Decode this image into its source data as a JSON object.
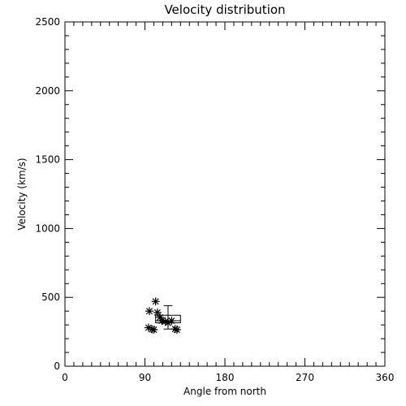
{
  "chart_data": {
    "type": "scatter",
    "title": "Velocity distribution",
    "xlabel": "Angle from north",
    "ylabel": "Velocity (km/s)",
    "xlim": [
      0,
      360
    ],
    "ylim": [
      0,
      2500
    ],
    "xticks": [
      0,
      90,
      180,
      270,
      360
    ],
    "yticks": [
      0,
      500,
      1000,
      1500,
      2000,
      2500
    ],
    "xtick_labels": [
      "0",
      "90",
      "180",
      "270",
      "360"
    ],
    "ytick_labels": [
      "0",
      "500",
      "1000",
      "1500",
      "2000",
      "2500"
    ],
    "x_minor_step": 10,
    "y_minor_step": 100,
    "grid": false,
    "marker": "asterisk",
    "points": [
      {
        "x": 95,
        "y": 400
      },
      {
        "x": 102,
        "y": 470
      },
      {
        "x": 104,
        "y": 390
      },
      {
        "x": 107,
        "y": 355
      },
      {
        "x": 109,
        "y": 330
      },
      {
        "x": 113,
        "y": 325
      },
      {
        "x": 116,
        "y": 315
      },
      {
        "x": 120,
        "y": 330
      },
      {
        "x": 94,
        "y": 280
      },
      {
        "x": 98,
        "y": 268
      },
      {
        "x": 100,
        "y": 265
      },
      {
        "x": 124,
        "y": 270
      },
      {
        "x": 126,
        "y": 265
      }
    ],
    "box": {
      "x_low": 102,
      "x_high": 130,
      "q1": 315,
      "q3": 370,
      "median": 330,
      "whisker_x": 116,
      "whisker_low": 270,
      "whisker_high": 440,
      "cap_half_width": 5
    }
  }
}
